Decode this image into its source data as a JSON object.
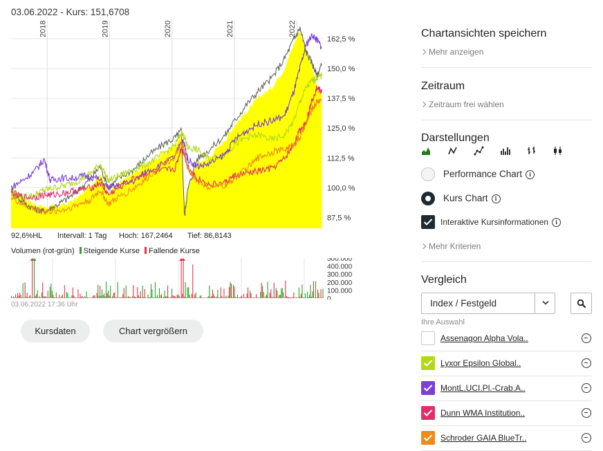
{
  "header": {
    "date": "03.06.2022",
    "separator": " - ",
    "price_label": "Kurs: 151,6708"
  },
  "chart_data": {
    "type": "line",
    "x_axis_years": [
      "2018",
      "2019",
      "2020",
      "2021",
      "2022"
    ],
    "y_ticks": [
      "162,5 %",
      "150,0 %",
      "137,5 %",
      "125,0 %",
      "112,5 %",
      "100,0 %",
      "87,5 %"
    ],
    "ylim": [
      83.0,
      170.0
    ],
    "series": [
      {
        "color": "#ffff00",
        "style": "area",
        "points": [
          [
            2017.42,
            100
          ],
          [
            2017.6,
            96
          ],
          [
            2017.8,
            93
          ],
          [
            2017.95,
            92
          ],
          [
            2018.1,
            92
          ],
          [
            2018.3,
            93
          ],
          [
            2018.5,
            96
          ],
          [
            2018.7,
            101
          ],
          [
            2018.85,
            106
          ],
          [
            2018.98,
            98
          ],
          [
            2019.15,
            102
          ],
          [
            2019.4,
            106
          ],
          [
            2019.6,
            110
          ],
          [
            2019.85,
            114
          ],
          [
            2020.05,
            118
          ],
          [
            2020.15,
            122
          ],
          [
            2020.2,
            92
          ],
          [
            2020.25,
            100
          ],
          [
            2020.4,
            110
          ],
          [
            2020.6,
            113
          ],
          [
            2020.85,
            120
          ],
          [
            2021.0,
            126
          ],
          [
            2021.2,
            132
          ],
          [
            2021.4,
            138
          ],
          [
            2021.6,
            142
          ],
          [
            2021.8,
            150
          ],
          [
            2021.95,
            160
          ],
          [
            2022.05,
            166
          ],
          [
            2022.15,
            158
          ],
          [
            2022.25,
            150
          ],
          [
            2022.32,
            143
          ],
          [
            2022.4,
            140
          ]
        ]
      },
      {
        "color": "#666666",
        "style": "line",
        "points": [
          [
            2017.42,
            99
          ],
          [
            2017.6,
            94
          ],
          [
            2017.8,
            91
          ],
          [
            2017.95,
            90
          ],
          [
            2018.1,
            92
          ],
          [
            2018.3,
            95
          ],
          [
            2018.5,
            99
          ],
          [
            2018.7,
            104
          ],
          [
            2018.85,
            109
          ],
          [
            2018.98,
            100
          ],
          [
            2019.15,
            104
          ],
          [
            2019.4,
            108
          ],
          [
            2019.6,
            113
          ],
          [
            2019.85,
            118
          ],
          [
            2020.05,
            121
          ],
          [
            2020.15,
            124
          ],
          [
            2020.2,
            88
          ],
          [
            2020.25,
            99
          ],
          [
            2020.4,
            112
          ],
          [
            2020.6,
            116
          ],
          [
            2020.85,
            122
          ],
          [
            2021.0,
            128
          ],
          [
            2021.2,
            135
          ],
          [
            2021.4,
            141
          ],
          [
            2021.6,
            146
          ],
          [
            2021.8,
            154
          ],
          [
            2021.95,
            162
          ],
          [
            2022.05,
            167
          ],
          [
            2022.15,
            157
          ],
          [
            2022.25,
            152
          ],
          [
            2022.32,
            147
          ],
          [
            2022.4,
            151.7
          ]
        ]
      },
      {
        "color": "#b2d817",
        "style": "line",
        "points": [
          [
            2017.42,
            97
          ],
          [
            2017.6,
            96
          ],
          [
            2017.8,
            97
          ],
          [
            2017.95,
            99
          ],
          [
            2018.1,
            100
          ],
          [
            2018.3,
            101
          ],
          [
            2018.5,
            103
          ],
          [
            2018.7,
            106
          ],
          [
            2018.85,
            110
          ],
          [
            2018.98,
            103
          ],
          [
            2019.15,
            105
          ],
          [
            2019.4,
            108
          ],
          [
            2019.6,
            110
          ],
          [
            2019.85,
            114
          ],
          [
            2020.05,
            118
          ],
          [
            2020.15,
            123
          ],
          [
            2020.2,
            121
          ],
          [
            2020.25,
            117
          ],
          [
            2020.4,
            116
          ],
          [
            2020.6,
            112
          ],
          [
            2020.85,
            114
          ],
          [
            2021.0,
            118
          ],
          [
            2021.2,
            121
          ],
          [
            2021.4,
            122
          ],
          [
            2021.6,
            120
          ],
          [
            2021.8,
            122
          ],
          [
            2021.95,
            128
          ],
          [
            2022.05,
            136
          ],
          [
            2022.15,
            142
          ],
          [
            2022.25,
            145
          ],
          [
            2022.32,
            146
          ],
          [
            2022.4,
            147
          ]
        ]
      },
      {
        "color": "#7b3fd6",
        "style": "line",
        "points": [
          [
            2017.42,
            100
          ],
          [
            2017.6,
            103
          ],
          [
            2017.8,
            107
          ],
          [
            2017.95,
            112
          ],
          [
            2018.05,
            103
          ],
          [
            2018.2,
            104
          ],
          [
            2018.4,
            104
          ],
          [
            2018.6,
            105
          ],
          [
            2018.8,
            104
          ],
          [
            2018.98,
            100
          ],
          [
            2019.15,
            101
          ],
          [
            2019.4,
            103
          ],
          [
            2019.6,
            107
          ],
          [
            2019.85,
            110
          ],
          [
            2020.05,
            113
          ],
          [
            2020.15,
            120
          ],
          [
            2020.2,
            118
          ],
          [
            2020.25,
            112
          ],
          [
            2020.4,
            109
          ],
          [
            2020.6,
            110
          ],
          [
            2020.85,
            114
          ],
          [
            2021.0,
            120
          ],
          [
            2021.2,
            124
          ],
          [
            2021.4,
            127
          ],
          [
            2021.6,
            128
          ],
          [
            2021.8,
            130
          ],
          [
            2021.95,
            140
          ],
          [
            2022.05,
            150
          ],
          [
            2022.15,
            160
          ],
          [
            2022.25,
            164
          ],
          [
            2022.32,
            162
          ],
          [
            2022.4,
            159
          ]
        ]
      },
      {
        "color": "#e0306a",
        "style": "line",
        "points": [
          [
            2017.42,
            98
          ],
          [
            2017.6,
            96
          ],
          [
            2017.8,
            96
          ],
          [
            2017.95,
            97
          ],
          [
            2018.1,
            97
          ],
          [
            2018.3,
            98
          ],
          [
            2018.5,
            99
          ],
          [
            2018.7,
            100
          ],
          [
            2018.85,
            102
          ],
          [
            2018.98,
            97
          ],
          [
            2019.15,
            100
          ],
          [
            2019.4,
            104
          ],
          [
            2019.6,
            106
          ],
          [
            2019.85,
            107
          ],
          [
            2020.05,
            108
          ],
          [
            2020.15,
            117
          ],
          [
            2020.2,
            114
          ],
          [
            2020.25,
            109
          ],
          [
            2020.4,
            104
          ],
          [
            2020.6,
            101
          ],
          [
            2020.85,
            102
          ],
          [
            2021.0,
            105
          ],
          [
            2021.2,
            106
          ],
          [
            2021.4,
            107
          ],
          [
            2021.6,
            108
          ],
          [
            2021.8,
            112
          ],
          [
            2021.95,
            118
          ],
          [
            2022.05,
            124
          ],
          [
            2022.15,
            128
          ],
          [
            2022.25,
            137
          ],
          [
            2022.32,
            142
          ],
          [
            2022.4,
            140
          ]
        ]
      },
      {
        "color": "#f08a19",
        "style": "line",
        "points": [
          [
            2017.42,
            96
          ],
          [
            2017.6,
            93
          ],
          [
            2017.8,
            91
          ],
          [
            2017.95,
            90
          ],
          [
            2018.1,
            90
          ],
          [
            2018.3,
            91
          ],
          [
            2018.5,
            93
          ],
          [
            2018.7,
            95
          ],
          [
            2018.85,
            99
          ],
          [
            2018.98,
            93
          ],
          [
            2019.15,
            96
          ],
          [
            2019.4,
            100
          ],
          [
            2019.6,
            104
          ],
          [
            2019.85,
            110
          ],
          [
            2020.05,
            113
          ],
          [
            2020.15,
            119
          ],
          [
            2020.2,
            115
          ],
          [
            2020.25,
            108
          ],
          [
            2020.4,
            103
          ],
          [
            2020.6,
            100
          ],
          [
            2020.85,
            101
          ],
          [
            2021.0,
            104
          ],
          [
            2021.2,
            108
          ],
          [
            2021.4,
            113
          ],
          [
            2021.6,
            115
          ],
          [
            2021.8,
            116
          ],
          [
            2021.95,
            118
          ],
          [
            2022.05,
            121
          ],
          [
            2022.15,
            127
          ],
          [
            2022.25,
            133
          ],
          [
            2022.32,
            136
          ],
          [
            2022.4,
            137
          ]
        ]
      }
    ],
    "stats": {
      "pct_hl": "92,6%HL",
      "interval": "Intervall: 1 Tag",
      "high": "Hoch: 167,2464",
      "low": "Tief: 86,8143"
    },
    "volume": {
      "legend_title": "Volumen (rot-grün)",
      "legend_up": "Steigende Kurse",
      "legend_down": "Fallende Kurse",
      "up_color": "#2aa32a",
      "down_color": "#e8304a",
      "y_ticks": [
        "500.000",
        "400.000",
        "300.000",
        "200.000",
        "100.000",
        "0"
      ],
      "ylim": [
        0,
        500000
      ],
      "timestamp": "03.06.2022 17:36 Uhr"
    }
  },
  "buttons": {
    "kursdaten": "Kursdaten",
    "vergroessern": "Chart vergrößern"
  },
  "sidebar": {
    "save_views": {
      "title": "Chartansichten speichern",
      "more": "Mehr anzeigen"
    },
    "zeitraum": {
      "title": "Zeitraum",
      "link": "Zeitraum frei wählen"
    },
    "darstellungen": {
      "title": "Darstellungen",
      "icons": [
        "mountain-chart-icon",
        "line-chart-icon",
        "dotted-line-chart-icon",
        "bar-chart-icon",
        "ohlc-chart-icon",
        "candlestick-chart-icon"
      ],
      "options": [
        "Performance Chart",
        "Kurs Chart"
      ],
      "interactive": "Interaktive Kursinformationen",
      "more": "Mehr Kriterien"
    },
    "vergleich": {
      "title": "Vergleich",
      "select_value": "Index / Festgeld",
      "selection_label": "Ihre Auswahl",
      "items": [
        {
          "name": "Assenagon Alpha Vola..",
          "color": "#ffffff",
          "checked": false
        },
        {
          "name": "Lyxor Epsilon Global..",
          "color": "#b2d817",
          "checked": true
        },
        {
          "name": "MontL.UCI.Pl.-Crab.A..",
          "color": "#7b3fd6",
          "checked": true
        },
        {
          "name": "Dunn WMA Institution..",
          "color": "#e0306a",
          "checked": true
        },
        {
          "name": "Schroder GAIA BlueTr..",
          "color": "#f08a19",
          "checked": true
        }
      ]
    }
  }
}
